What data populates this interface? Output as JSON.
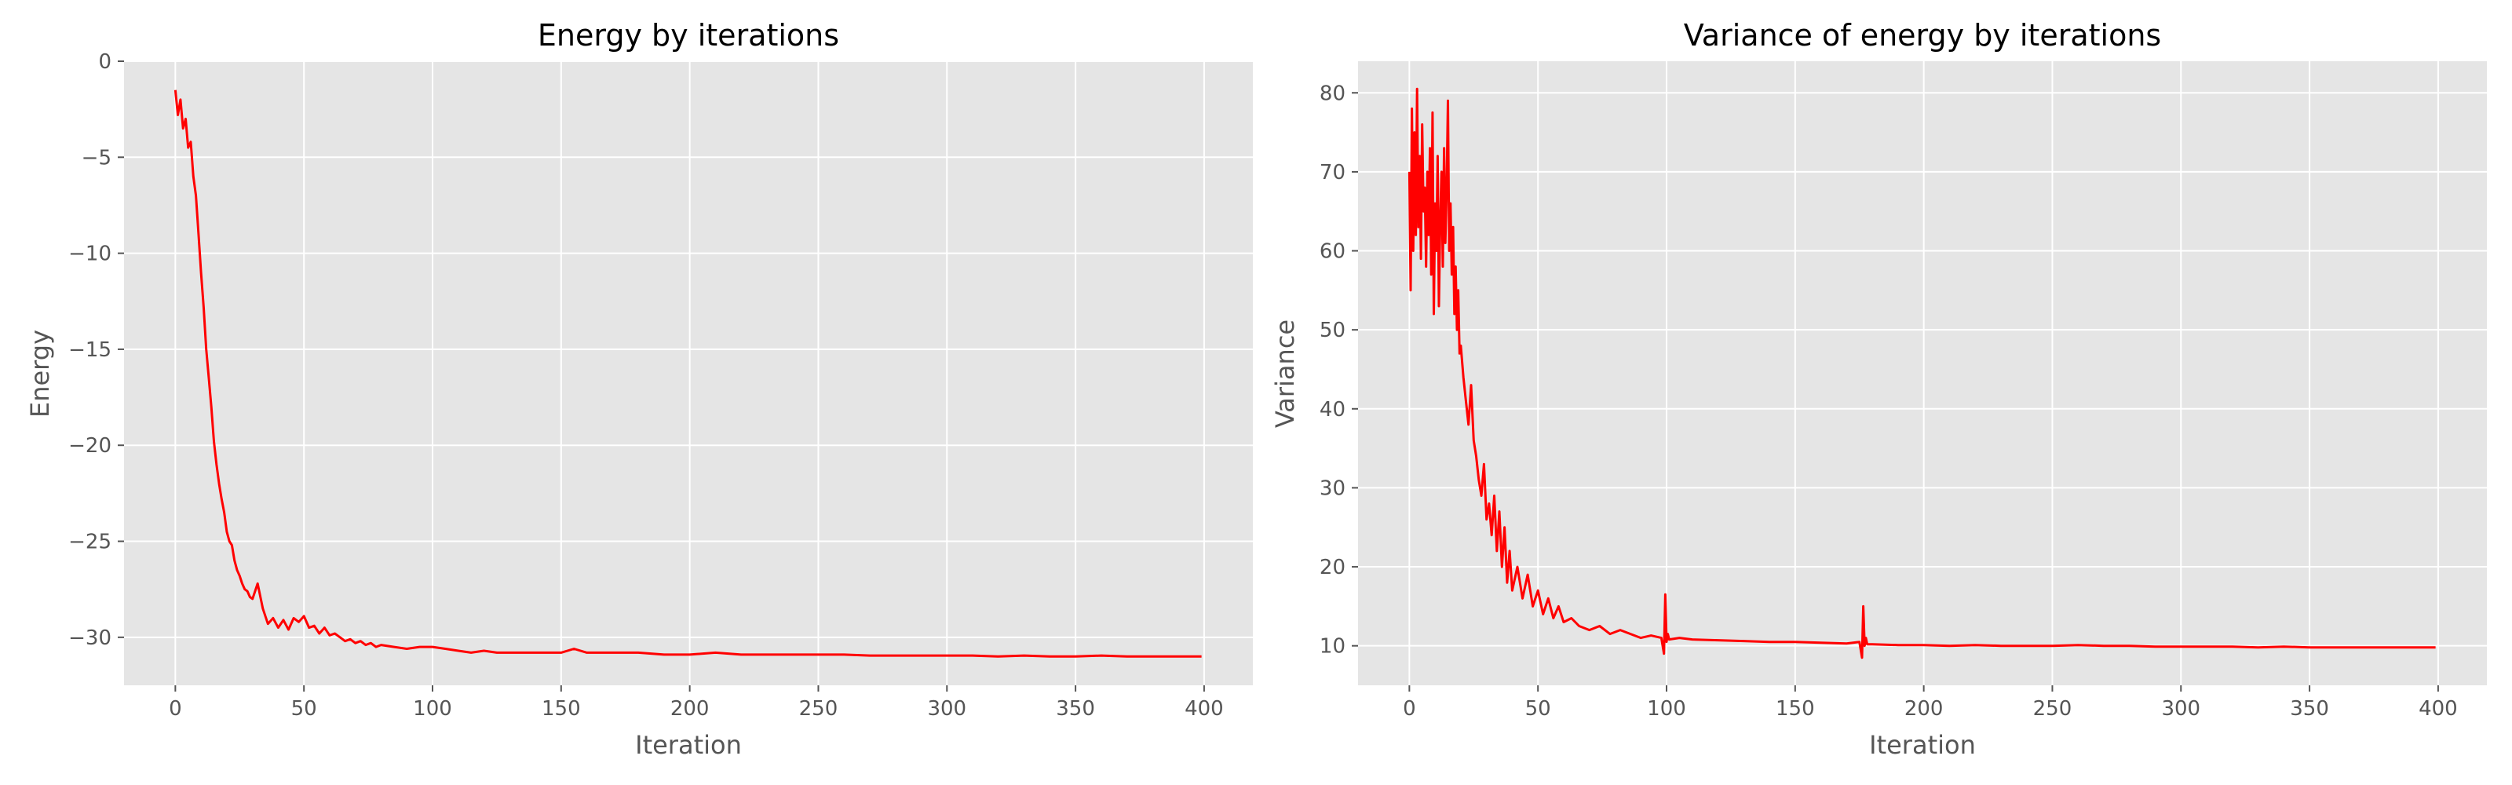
{
  "chart_data": [
    {
      "type": "line",
      "title": "Energy by iterations",
      "xlabel": "Iteration",
      "ylabel": "Energy",
      "xlim": [
        -19.95,
        418.95
      ],
      "ylim": [
        -32.5,
        0
      ],
      "xticks": [
        0,
        50,
        100,
        150,
        200,
        250,
        300,
        350,
        400
      ],
      "yticks": [
        -30,
        -25,
        -20,
        -15,
        -10,
        -5,
        0
      ],
      "ytick_labels": [
        "−30",
        "−25",
        "−20",
        "−15",
        "−10",
        "−5",
        "0"
      ],
      "grid": true,
      "series": [
        {
          "color": "#ff0000",
          "x": [
            0,
            1,
            2,
            3,
            4,
            5,
            6,
            7,
            8,
            9,
            10,
            11,
            12,
            13,
            14,
            15,
            16,
            17,
            18,
            19,
            20,
            21,
            22,
            23,
            24,
            25,
            26,
            27,
            28,
            29,
            30,
            32,
            34,
            36,
            38,
            40,
            42,
            44,
            46,
            48,
            50,
            52,
            54,
            56,
            58,
            60,
            62,
            64,
            66,
            68,
            70,
            72,
            74,
            76,
            78,
            80,
            85,
            90,
            95,
            100,
            105,
            110,
            115,
            120,
            125,
            130,
            140,
            150,
            155,
            160,
            170,
            180,
            190,
            200,
            210,
            220,
            230,
            240,
            250,
            260,
            270,
            280,
            290,
            300,
            310,
            320,
            330,
            340,
            350,
            360,
            370,
            380,
            390,
            399
          ],
          "y": [
            -1.5,
            -2.8,
            -2.0,
            -3.5,
            -3.0,
            -4.5,
            -4.2,
            -6.0,
            -7.0,
            -9.0,
            -11.0,
            -12.8,
            -15.0,
            -16.5,
            -18.0,
            -19.8,
            -21.0,
            -22.0,
            -22.8,
            -23.5,
            -24.5,
            -25.0,
            -25.2,
            -26.0,
            -26.5,
            -26.8,
            -27.2,
            -27.5,
            -27.6,
            -27.9,
            -28.0,
            -27.2,
            -28.5,
            -29.3,
            -29.0,
            -29.5,
            -29.1,
            -29.6,
            -29.0,
            -29.2,
            -28.9,
            -29.5,
            -29.4,
            -29.8,
            -29.5,
            -29.9,
            -29.8,
            -30.0,
            -30.2,
            -30.1,
            -30.3,
            -30.2,
            -30.4,
            -30.3,
            -30.5,
            -30.4,
            -30.5,
            -30.6,
            -30.5,
            -30.5,
            -30.6,
            -30.7,
            -30.8,
            -30.7,
            -30.8,
            -30.8,
            -30.8,
            -30.8,
            -30.6,
            -30.8,
            -30.8,
            -30.8,
            -30.9,
            -30.9,
            -30.8,
            -30.9,
            -30.9,
            -30.9,
            -30.9,
            -30.9,
            -30.95,
            -30.95,
            -30.95,
            -30.95,
            -30.95,
            -31.0,
            -30.95,
            -31.0,
            -31.0,
            -30.95,
            -31.0,
            -31.0,
            -31.0,
            -31.0
          ]
        }
      ]
    },
    {
      "type": "line",
      "title": "Variance of energy by iterations",
      "xlabel": "Iteration",
      "ylabel": "Variance",
      "xlim": [
        -19.95,
        418.95
      ],
      "ylim": [
        5,
        84
      ],
      "xticks": [
        0,
        50,
        100,
        150,
        200,
        250,
        300,
        350,
        400
      ],
      "yticks": [
        10,
        20,
        30,
        40,
        50,
        60,
        70,
        80
      ],
      "ytick_labels": [
        "10",
        "20",
        "30",
        "40",
        "50",
        "60",
        "70",
        "80"
      ],
      "grid": true,
      "series": [
        {
          "color": "#ff0000",
          "x": [
            0,
            0.5,
            1,
            1.5,
            2,
            2.5,
            3,
            3.5,
            4,
            4.5,
            5,
            5.5,
            6,
            6.5,
            7,
            7.5,
            8,
            8.5,
            9,
            9.5,
            10,
            10.5,
            11,
            11.5,
            12,
            12.5,
            13,
            13.5,
            14,
            14.5,
            15,
            15.5,
            16,
            16.5,
            17,
            17.5,
            18,
            18.5,
            19,
            19.5,
            20,
            21,
            22,
            23,
            24,
            25,
            26,
            27,
            28,
            29,
            30,
            31,
            32,
            33,
            34,
            35,
            36,
            37,
            38,
            39,
            40,
            42,
            44,
            46,
            48,
            50,
            52,
            54,
            56,
            58,
            60,
            63,
            66,
            70,
            74,
            78,
            82,
            86,
            90,
            94,
            98,
            99,
            99.5,
            100,
            100.5,
            101,
            105,
            110,
            120,
            130,
            140,
            150,
            160,
            170,
            175,
            176,
            176.5,
            177,
            177.5,
            178,
            180,
            190,
            200,
            210,
            220,
            230,
            240,
            250,
            260,
            270,
            280,
            290,
            300,
            310,
            320,
            330,
            340,
            350,
            360,
            370,
            380,
            390,
            399
          ],
          "y": [
            70,
            55,
            78,
            60,
            75,
            62,
            80.5,
            63,
            72,
            59,
            76,
            65,
            68,
            58,
            70,
            62,
            73,
            57,
            77.5,
            52,
            66,
            60,
            72,
            53,
            64,
            70,
            58,
            73,
            61,
            68,
            79,
            60,
            66,
            57,
            63,
            52,
            58,
            50,
            55,
            47,
            48,
            44,
            41,
            38,
            43,
            36,
            34,
            31,
            29,
            33,
            26,
            28,
            24,
            29,
            22,
            27,
            20,
            25,
            18,
            22,
            17,
            20,
            16,
            19,
            15,
            17,
            14,
            16,
            13.5,
            15,
            13,
            13.5,
            12.5,
            12,
            12.5,
            11.5,
            12,
            11.5,
            11,
            11.3,
            11,
            9,
            16.5,
            10.5,
            11.5,
            10.8,
            11,
            10.8,
            10.7,
            10.6,
            10.5,
            10.5,
            10.4,
            10.3,
            10.5,
            8.5,
            15,
            10,
            11,
            10.2,
            10.2,
            10.1,
            10.1,
            10.0,
            10.1,
            10.0,
            10.0,
            10.0,
            10.1,
            10.0,
            10.0,
            9.9,
            9.9,
            9.9,
            9.9,
            9.8,
            9.9,
            9.8,
            9.8,
            9.8,
            9.8,
            9.8,
            9.8
          ]
        }
      ]
    }
  ]
}
